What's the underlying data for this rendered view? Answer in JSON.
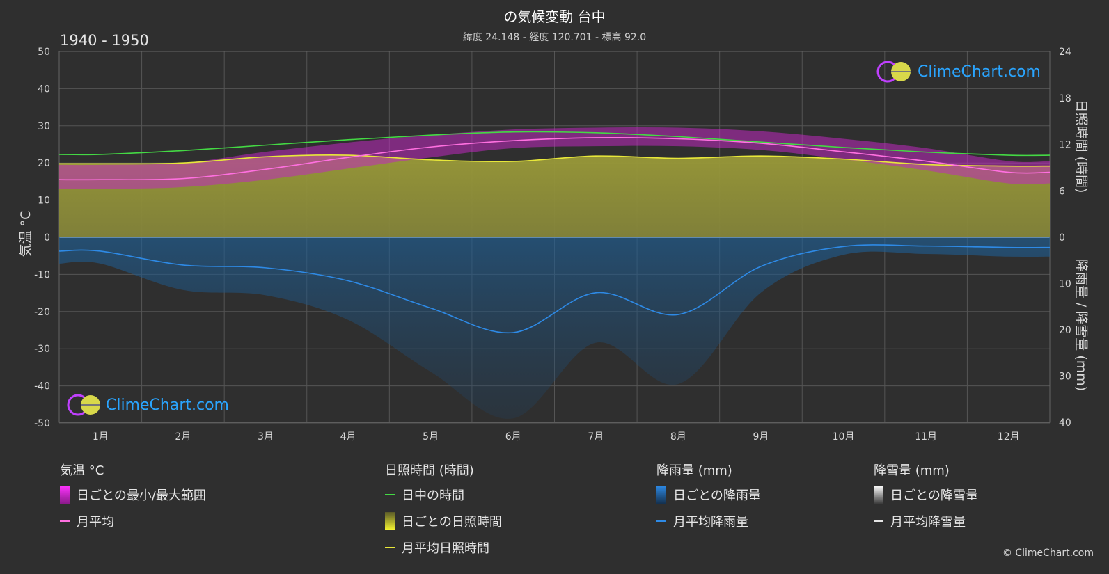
{
  "header": {
    "title": "の気候変動 台中",
    "subtitle": "緯度 24.148 - 経度 120.701 - 標高 92.0",
    "period": "1940 - 1950"
  },
  "axes": {
    "left_label": "気温 °C",
    "right_top_label": "日照時間 (時間)",
    "right_bottom_label": "降雨量 / 降雪量 (mm)",
    "left_ticks": [
      "50",
      "40",
      "30",
      "20",
      "10",
      "0",
      "-10",
      "-20",
      "-30",
      "-40",
      "-50"
    ],
    "right_top_ticks": [
      "24",
      "18",
      "12",
      "6",
      "0"
    ],
    "right_bottom_ticks": [
      "10",
      "20",
      "30",
      "40"
    ],
    "months": [
      "1月",
      "2月",
      "3月",
      "4月",
      "5月",
      "6月",
      "7月",
      "8月",
      "9月",
      "10月",
      "11月",
      "12月"
    ]
  },
  "chart_data": {
    "type": "line",
    "x": [
      "1月",
      "2月",
      "3月",
      "4月",
      "5月",
      "6月",
      "7月",
      "8月",
      "9月",
      "10月",
      "11月",
      "12月"
    ],
    "temp_ylim": [
      -50,
      50
    ],
    "sunshine_ylim": [
      0,
      24
    ],
    "precip_ylim": [
      0,
      40
    ],
    "series": [
      {
        "name": "日中の時間",
        "axis": "sunshine_hours",
        "color": "#44d944",
        "values": [
          10.7,
          11.2,
          11.9,
          12.6,
          13.2,
          13.6,
          13.5,
          13.0,
          12.3,
          11.6,
          11.0,
          10.6
        ]
      },
      {
        "name": "月平均日照時間",
        "axis": "sunshine_hours",
        "color": "#e8e83a",
        "values": [
          9.5,
          9.6,
          10.4,
          10.6,
          10.0,
          9.8,
          10.5,
          10.2,
          10.5,
          10.1,
          9.4,
          9.2
        ]
      },
      {
        "name": "月平均",
        "axis": "temperature_c",
        "color": "#ff70e0",
        "values": [
          15.5,
          15.8,
          18.3,
          21.5,
          24.3,
          26.0,
          26.8,
          26.5,
          25.3,
          23.0,
          20.5,
          17.5
        ]
      },
      {
        "name": "月平均降雨量",
        "axis": "rain_mm",
        "color": "#2e8ae6",
        "values": [
          3.0,
          6.0,
          6.6,
          9.4,
          15.3,
          20.6,
          12.0,
          16.7,
          6.3,
          2.0,
          1.9,
          2.2
        ]
      }
    ],
    "daily_temp_range": {
      "min": [
        13,
        13.5,
        15.5,
        18.5,
        21.5,
        24,
        24.5,
        24.5,
        23.5,
        21,
        18,
        14.5
      ],
      "max": [
        19.5,
        20,
        23,
        25.5,
        27.5,
        29,
        29.5,
        29.5,
        28.5,
        26.5,
        24,
        20.5
      ]
    }
  },
  "legend": {
    "temp": {
      "title": "気温 °C",
      "range": "日ごとの最小/最大範囲",
      "avg": "月平均"
    },
    "sun": {
      "title": "日照時間 (時間)",
      "daylight": "日中の時間",
      "daily": "日ごとの日照時間",
      "avg": "月平均日照時間"
    },
    "rain": {
      "title": "降雨量 (mm)",
      "daily": "日ごとの降雨量",
      "avg": "月平均降雨量"
    },
    "snow": {
      "title": "降雪量 (mm)",
      "daily": "日ごとの降雪量",
      "avg": "月平均降雪量"
    }
  },
  "brand": {
    "name": "ClimeChart.com",
    "copyright": "© ClimeChart.com"
  },
  "colors": {
    "background": "#2f2f2f",
    "grid": "#5a5a5a",
    "daylight": "#44d944",
    "sunshine": "#e8e83a",
    "temp": "#ff70e0",
    "temp_range": "#cc22cc",
    "rain": "#2e8ae6",
    "brand": "#2aa5ff"
  }
}
